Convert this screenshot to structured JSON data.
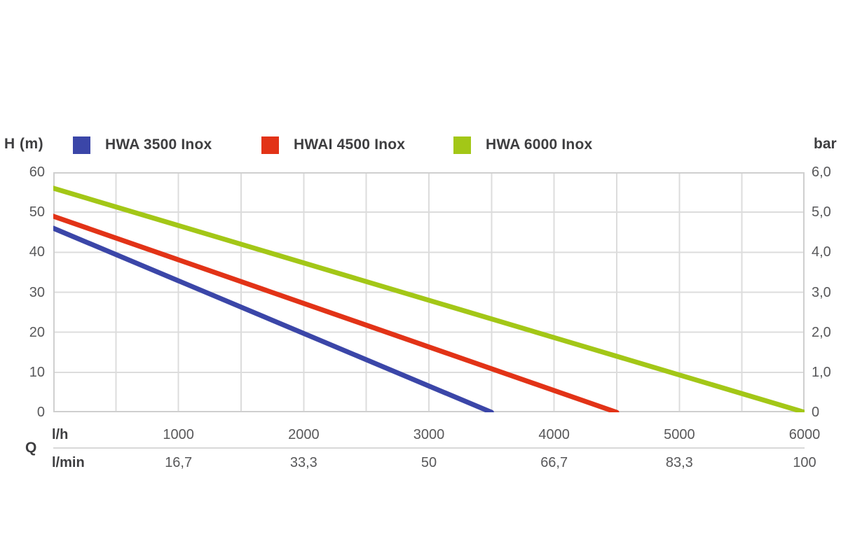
{
  "chart_data": {
    "type": "line",
    "title": "",
    "ylabel_left": "H (m)",
    "ylabel_right": "bar",
    "x_axis_label": "Q",
    "x_unit_primary": "l/h",
    "x_unit_secondary": "l/min",
    "xlim": [
      0,
      6000
    ],
    "ylim_left": [
      0,
      60
    ],
    "ylim_right": [
      0,
      6.0
    ],
    "grid": true,
    "x_grid_step": 500,
    "y_grid_step": 10,
    "legend_position": "top",
    "x_tick_values": [
      1000,
      2000,
      3000,
      4000,
      5000,
      6000
    ],
    "x_tick_labels_lh": [
      "1000",
      "2000",
      "3000",
      "4000",
      "5000",
      "6000"
    ],
    "x_tick_labels_lmin": [
      "16,7",
      "33,3",
      "50",
      "66,7",
      "83,3",
      "100"
    ],
    "y_tick_values": [
      60,
      50,
      40,
      30,
      20,
      10,
      0
    ],
    "y_tick_labels_left": [
      "60",
      "50",
      "40",
      "30",
      "20",
      "10",
      "0"
    ],
    "y_tick_labels_right": [
      "6,0",
      "5,0",
      "4,0",
      "3,0",
      "2,0",
      "1,0",
      "0"
    ],
    "series": [
      {
        "name": "HWA 3500 Inox",
        "color": "#3b46a8",
        "points": [
          [
            0,
            46
          ],
          [
            3500,
            0
          ]
        ]
      },
      {
        "name": "HWAI 4500 Inox",
        "color": "#e23317",
        "points": [
          [
            0,
            49
          ],
          [
            4500,
            0
          ]
        ]
      },
      {
        "name": "HWA 6000 Inox",
        "color": "#a3c717",
        "points": [
          [
            0,
            56
          ],
          [
            6000,
            0
          ]
        ]
      }
    ],
    "colors": {
      "grid": "#dcdcdc",
      "plot_border": "#cfcfcf",
      "tick_text": "#58585a",
      "label_text": "#3e3e40",
      "divider": "#d9d9d9",
      "background": "#ffffff"
    }
  }
}
